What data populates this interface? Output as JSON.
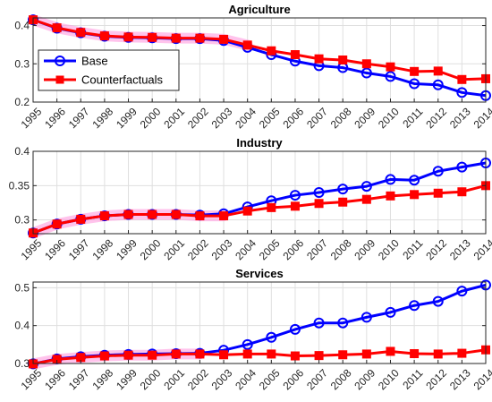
{
  "colors": {
    "base": "#0000ff",
    "counterfactuals": "#ff0000",
    "background": "#ffffff",
    "grid": "#dfdfdf",
    "overlap_glow": "#ff9be0"
  },
  "legend": {
    "placement": "top-left of Agriculture panel",
    "items": [
      {
        "label": "Base",
        "color": "#0000ff",
        "marker": "circle"
      },
      {
        "label": "Counterfactuals",
        "color": "#ff0000",
        "marker": "square"
      }
    ]
  },
  "chart_data": [
    {
      "type": "line",
      "title": "Agriculture",
      "grid": true,
      "x": [
        "1995",
        "1996",
        "1997",
        "1998",
        "1999",
        "2000",
        "2001",
        "2002",
        "2003",
        "2004",
        "2005",
        "2006",
        "2007",
        "2008",
        "2009",
        "2010",
        "2011",
        "2012",
        "2013",
        "2014"
      ],
      "ylim": [
        0.2,
        0.42
      ],
      "yticks": [
        0.2,
        0.3,
        0.4
      ],
      "ytick_labels": [
        "0.2",
        "0.3",
        "0.4"
      ],
      "series": [
        {
          "name": "Base",
          "color": "#0000ff",
          "marker": "circle",
          "values": [
            0.415,
            0.393,
            0.381,
            0.372,
            0.369,
            0.368,
            0.366,
            0.366,
            0.361,
            0.343,
            0.324,
            0.307,
            0.295,
            0.29,
            0.276,
            0.267,
            0.248,
            0.245,
            0.225,
            0.217
          ]
        },
        {
          "name": "Counterfactuals",
          "color": "#ff0000",
          "marker": "square",
          "values": [
            0.415,
            0.394,
            0.382,
            0.373,
            0.37,
            0.369,
            0.367,
            0.367,
            0.364,
            0.349,
            0.334,
            0.324,
            0.313,
            0.31,
            0.3,
            0.292,
            0.28,
            0.281,
            0.259,
            0.261
          ]
        }
      ]
    },
    {
      "type": "line",
      "title": "Industry",
      "grid": true,
      "x": [
        "1995",
        "1996",
        "1997",
        "1998",
        "1999",
        "2000",
        "2001",
        "2002",
        "2003",
        "2004",
        "2005",
        "2006",
        "2007",
        "2008",
        "2009",
        "2010",
        "2011",
        "2012",
        "2013",
        "2014"
      ],
      "ylim": [
        0.28,
        0.4
      ],
      "yticks": [
        0.3,
        0.35,
        0.4
      ],
      "ytick_labels": [
        "0.3",
        "0.35",
        "0.4"
      ],
      "series": [
        {
          "name": "Base",
          "color": "#0000ff",
          "marker": "circle",
          "values": [
            0.281,
            0.294,
            0.301,
            0.306,
            0.308,
            0.308,
            0.308,
            0.307,
            0.309,
            0.319,
            0.328,
            0.336,
            0.34,
            0.345,
            0.349,
            0.359,
            0.358,
            0.371,
            0.377,
            0.383
          ]
        },
        {
          "name": "Counterfactuals",
          "color": "#ff0000",
          "marker": "square",
          "values": [
            0.281,
            0.294,
            0.301,
            0.306,
            0.308,
            0.308,
            0.308,
            0.306,
            0.306,
            0.313,
            0.318,
            0.32,
            0.324,
            0.326,
            0.33,
            0.335,
            0.337,
            0.339,
            0.341,
            0.35
          ]
        }
      ]
    },
    {
      "type": "line",
      "title": "Services",
      "grid": true,
      "x": [
        "1995",
        "1996",
        "1997",
        "1998",
        "1999",
        "2000",
        "2001",
        "2002",
        "2003",
        "2004",
        "2005",
        "2006",
        "2007",
        "2008",
        "2009",
        "2010",
        "2011",
        "2012",
        "2013",
        "2014"
      ],
      "ylim": [
        0.3,
        0.515
      ],
      "yticks": [
        0.3,
        0.4,
        0.5
      ],
      "ytick_labels": [
        "0.3",
        "0.4",
        "0.5"
      ],
      "series": [
        {
          "name": "Base",
          "color": "#0000ff",
          "marker": "circle",
          "values": [
            0.299,
            0.312,
            0.318,
            0.322,
            0.324,
            0.325,
            0.326,
            0.327,
            0.335,
            0.35,
            0.369,
            0.39,
            0.407,
            0.407,
            0.422,
            0.435,
            0.453,
            0.464,
            0.491,
            0.507
          ]
        },
        {
          "name": "Counterfactuals",
          "color": "#ff0000",
          "marker": "square",
          "values": [
            0.299,
            0.311,
            0.316,
            0.32,
            0.322,
            0.322,
            0.325,
            0.325,
            0.323,
            0.325,
            0.325,
            0.32,
            0.321,
            0.323,
            0.325,
            0.332,
            0.326,
            0.325,
            0.327,
            0.336
          ]
        }
      ]
    }
  ]
}
